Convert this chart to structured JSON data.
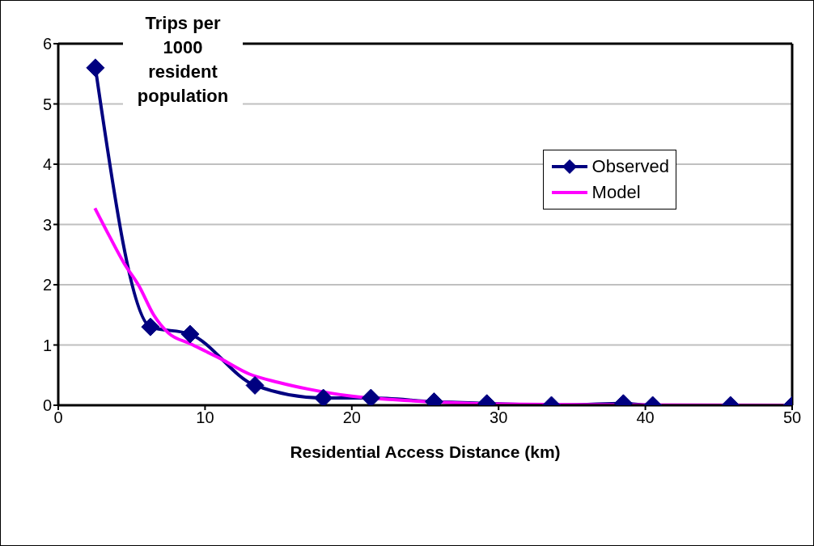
{
  "chart_data": {
    "type": "line",
    "ylabel": "Trips per 1000 resident population",
    "xlabel": "Residential Access Distance (km)",
    "xlim": [
      0,
      50
    ],
    "xticks": [
      0,
      10,
      20,
      30,
      40,
      50
    ],
    "ylim": [
      0,
      6
    ],
    "yticks": [
      0,
      1,
      2,
      3,
      4,
      5,
      6
    ],
    "grid": "y",
    "legend": "top right",
    "series": [
      {
        "name": "Observed",
        "color": "#000080",
        "marker": "diamond",
        "x": [
          2.53,
          6.28,
          8.98,
          13.4,
          18.06,
          21.3,
          25.6,
          29.2,
          33.6,
          38.5,
          40.5,
          45.8,
          50
        ],
        "values": [
          5.6,
          1.3,
          1.18,
          0.33,
          0.12,
          0.12,
          0.06,
          0.03,
          0.0,
          0.03,
          0.0,
          0.0,
          0.0
        ]
      },
      {
        "name": "Model",
        "color": "#ff00ff",
        "marker": "none",
        "x": [
          2.5,
          3.5,
          4.5,
          5.5,
          6.5,
          7.5,
          9,
          11,
          13,
          15,
          17,
          20,
          23,
          26,
          30,
          35,
          50
        ],
        "values": [
          3.27,
          2.8,
          2.35,
          1.98,
          1.5,
          1.2,
          1.02,
          0.78,
          0.52,
          0.38,
          0.27,
          0.15,
          0.09,
          0.05,
          0.02,
          0.01,
          0.0
        ]
      }
    ]
  }
}
